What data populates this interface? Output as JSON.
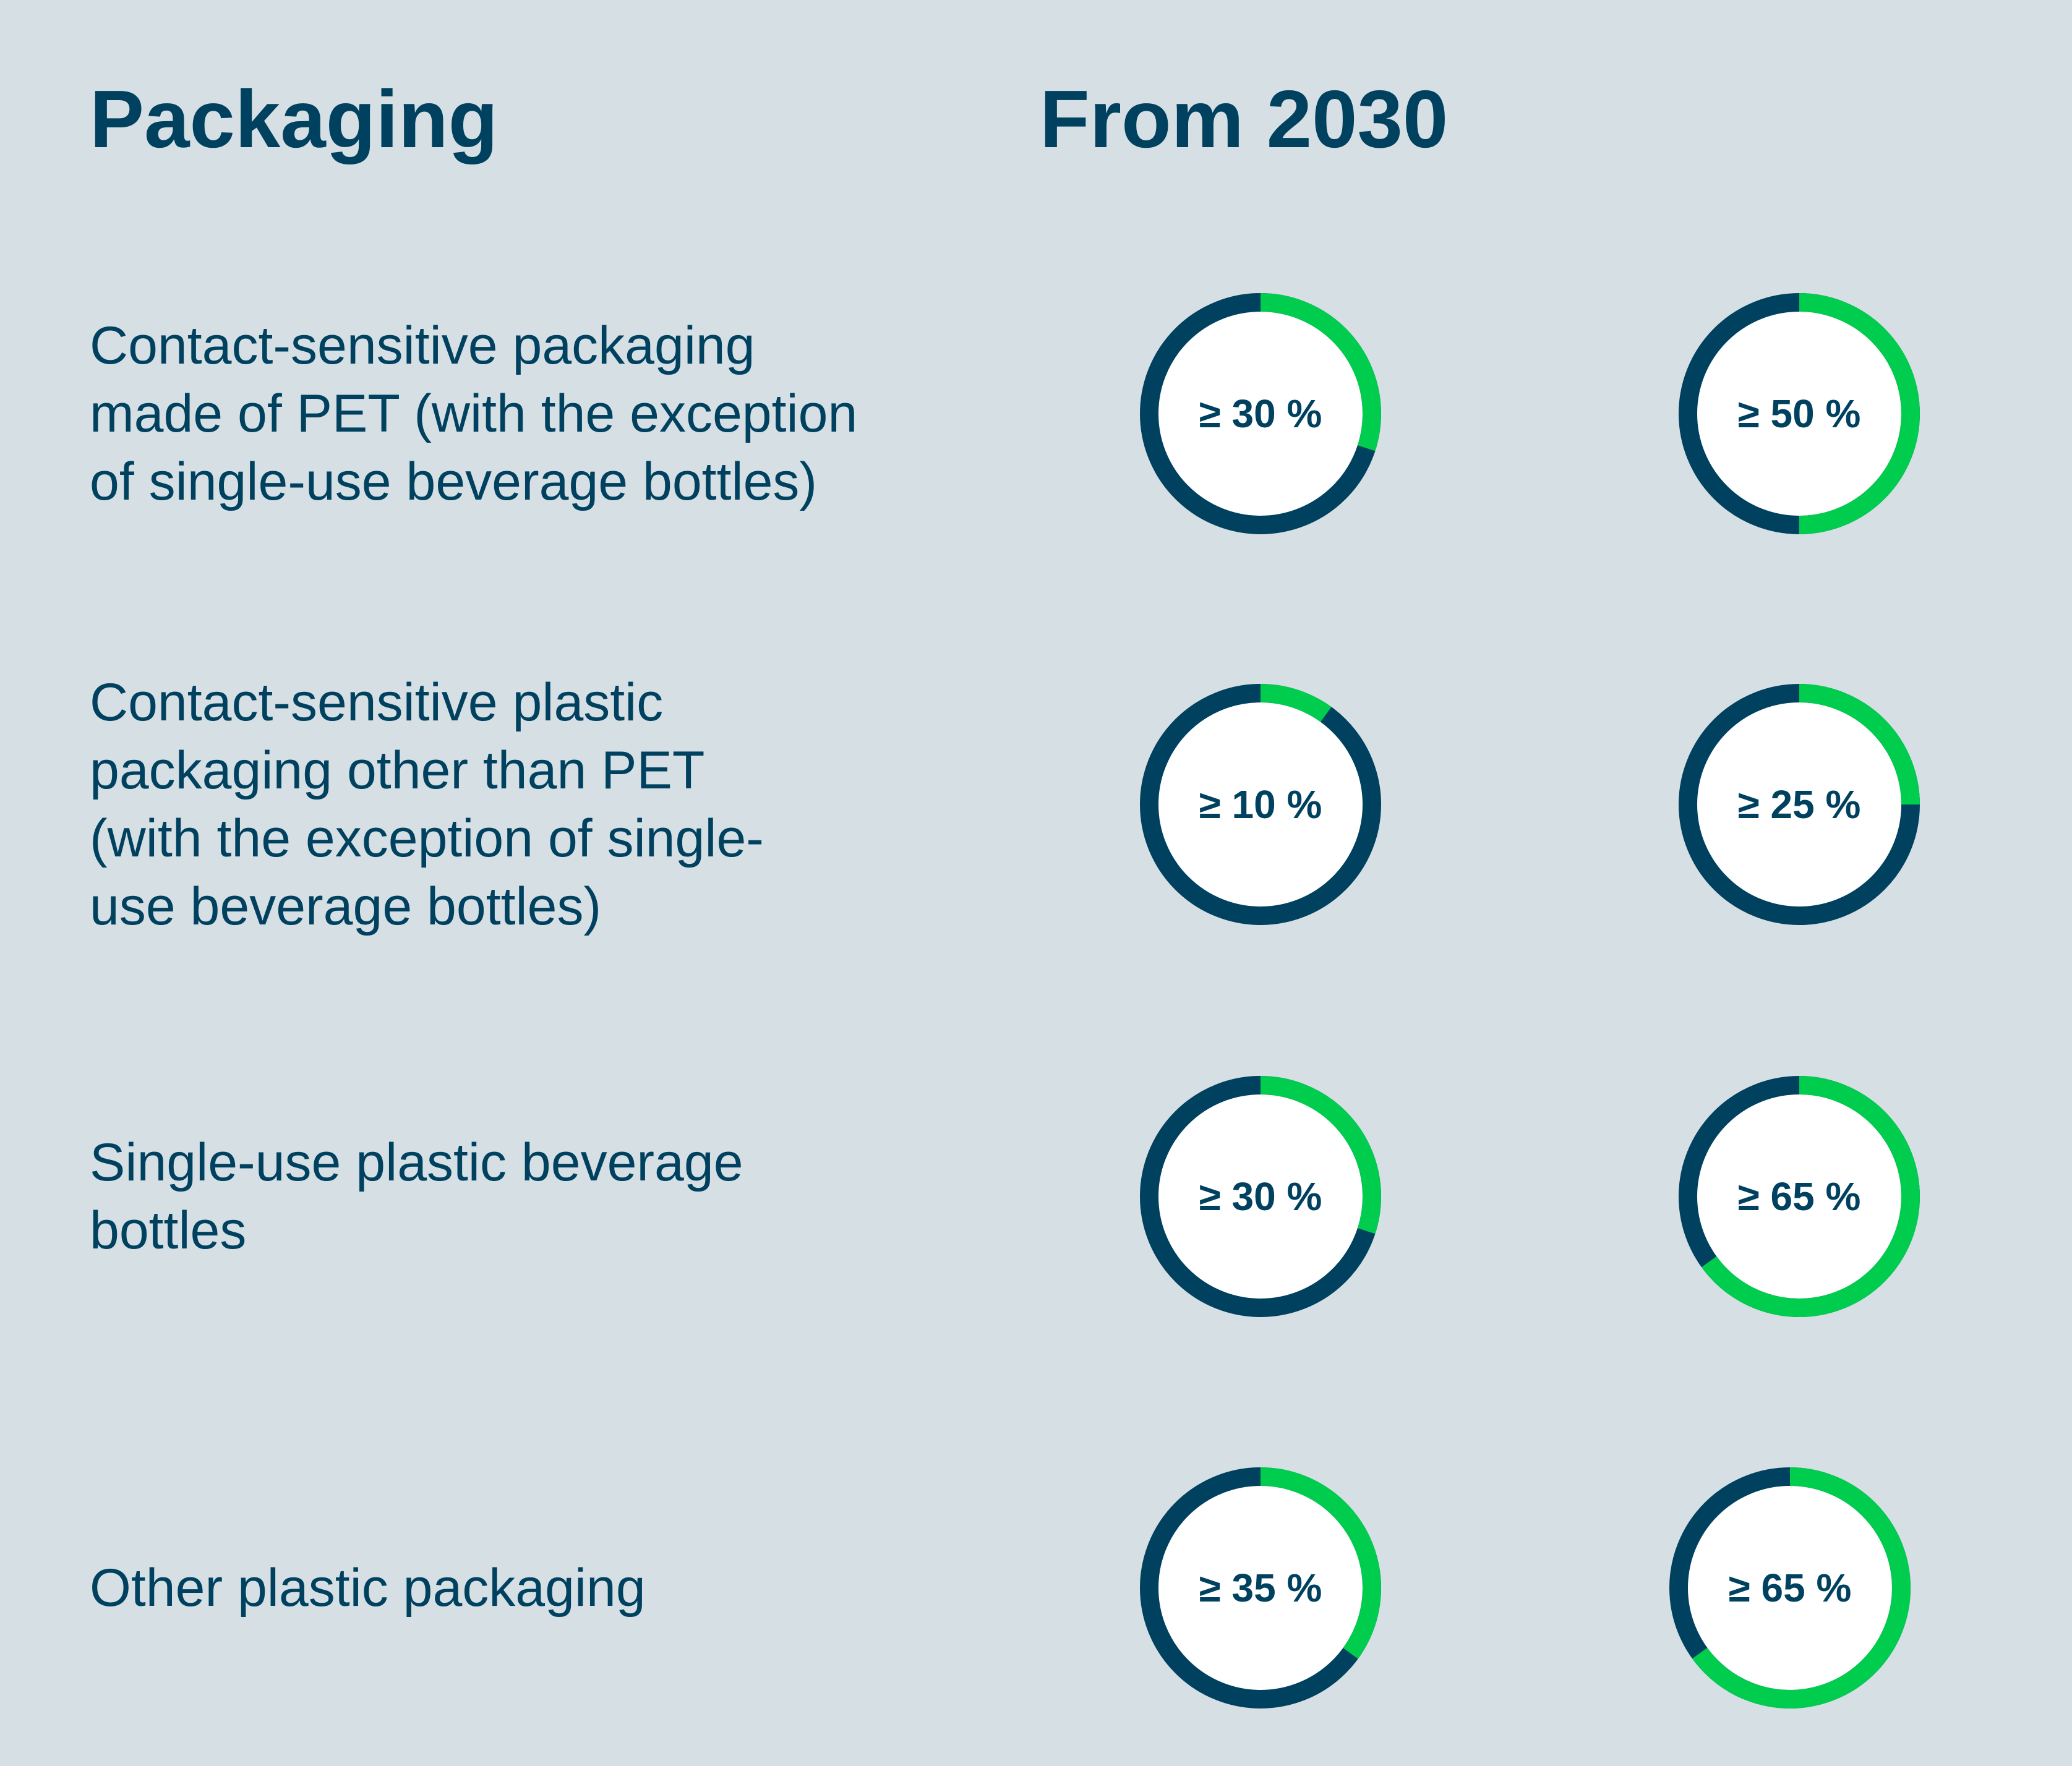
{
  "header": {
    "category": "Packaging",
    "period": "From 2030"
  },
  "colors": {
    "background": "#d6dfe4",
    "text": "#00415f",
    "achieved": "#00cc4e",
    "remaining": "#00415f"
  },
  "chart_data": {
    "type": "donut",
    "columns": [
      "",
      "From 2030"
    ],
    "rows": [
      {
        "label_lines": [
          "Contact-sensitive packaging",
          "made of PET (with the exception",
          "of single-use beverage bottles)"
        ],
        "values": [
          30,
          50
        ],
        "labels": [
          "≥ 30 %",
          "≥ 50 %"
        ]
      },
      {
        "label_lines": [
          "Contact-sensitive plastic",
          "packaging other than PET",
          "(with the exception of single-",
          "use beverage bottles)"
        ],
        "values": [
          10,
          25
        ],
        "labels": [
          "≥ 10 %",
          "≥ 25 %"
        ]
      },
      {
        "label_lines": [
          "Single-use plastic beverage",
          "bottles"
        ],
        "values": [
          30,
          65
        ],
        "labels": [
          "≥ 30 %",
          "≥ 65 %"
        ]
      },
      {
        "label_lines": [
          "Other plastic packaging"
        ],
        "values": [
          35,
          65
        ],
        "labels": [
          "≥ 35 %",
          "≥ 65 %"
        ]
      }
    ]
  }
}
